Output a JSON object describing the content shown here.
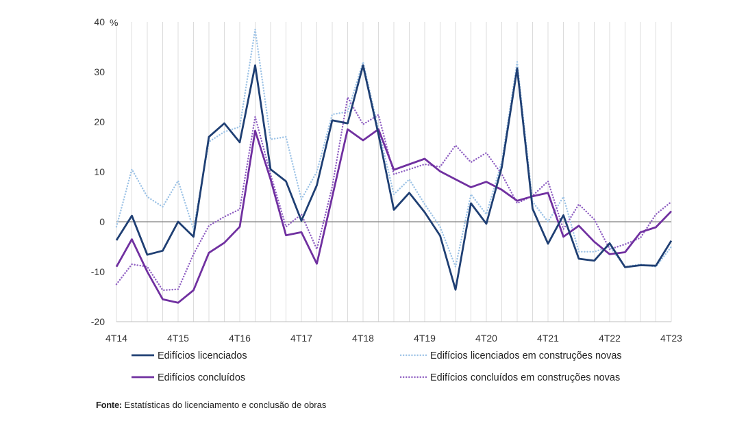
{
  "chart_data": {
    "type": "line",
    "title": "",
    "xlabel": "",
    "ylabel": "",
    "unit_label": "%",
    "ylim": [
      -20,
      40
    ],
    "yticks": [
      -20,
      -10,
      0,
      10,
      20,
      30,
      40
    ],
    "x": [
      "4T14",
      "1T15",
      "2T15",
      "3T15",
      "4T15",
      "1T16",
      "2T16",
      "3T16",
      "4T16",
      "1T17",
      "2T17",
      "3T17",
      "4T17",
      "1T18",
      "2T18",
      "3T18",
      "4T18",
      "1T19",
      "2T19",
      "3T19",
      "4T19",
      "1T20",
      "2T20",
      "3T20",
      "4T20",
      "1T21",
      "2T21",
      "3T21",
      "4T21",
      "1T22",
      "2T22",
      "3T22",
      "4T22",
      "1T23",
      "2T23",
      "3T23",
      "4T23"
    ],
    "x_tick_labels": [
      "4T14",
      "4T15",
      "4T16",
      "4T17",
      "4T18",
      "4T19",
      "4T20",
      "4T21",
      "4T22",
      "4T23"
    ],
    "grid": "vertical",
    "series": [
      {
        "name": "Edifícios licenciados",
        "color": "#1f3f73",
        "style": "solid",
        "values": [
          -3.7,
          1.2,
          -6.6,
          -5.8,
          0.0,
          -3.0,
          17.0,
          19.7,
          15.9,
          31.3,
          10.5,
          8.1,
          0.2,
          7.3,
          20.3,
          19.7,
          31.3,
          17.5,
          2.4,
          5.8,
          1.9,
          -2.8,
          -13.6,
          3.7,
          -0.4,
          10.9,
          30.7,
          2.6,
          -4.4,
          1.3,
          -7.4,
          -7.8,
          -4.3,
          -9.1,
          -8.7,
          -8.8,
          -3.8
        ]
      },
      {
        "name": "Edifícios licenciados em construções novas",
        "color": "#9dc3e6",
        "style": "dotted",
        "values": [
          -1.0,
          10.5,
          5.0,
          3.0,
          8.2,
          -1.5,
          16.0,
          18.0,
          19.0,
          38.5,
          16.5,
          17.0,
          4.5,
          10.0,
          21.5,
          22.0,
          32.0,
          18.5,
          5.5,
          8.5,
          3.5,
          -1.0,
          -9.0,
          5.5,
          1.5,
          12.0,
          32.0,
          4.0,
          0.0,
          5.0,
          -6.0,
          -6.0,
          -5.0,
          -9.0,
          -8.5,
          -9.0,
          -5.0
        ]
      },
      {
        "name": "Edifícios concluídos",
        "color": "#7030a0",
        "style": "solid",
        "values": [
          -9.0,
          -3.5,
          -10.0,
          -15.5,
          -16.2,
          -13.7,
          -6.2,
          -4.2,
          -1.0,
          18.2,
          8.5,
          -2.7,
          -2.1,
          -8.4,
          5.0,
          18.5,
          16.3,
          18.5,
          10.4,
          11.5,
          12.6,
          10.1,
          8.5,
          6.9,
          8.0,
          6.4,
          4.2,
          5.1,
          5.8,
          -3.0,
          -0.8,
          -4.0,
          -6.5,
          -6.1,
          -2.1,
          -1.1,
          2.1
        ]
      },
      {
        "name": "Edifícios concluídos em construções novas",
        "color": "#8f5fc2",
        "style": "dotted",
        "values": [
          -12.5,
          -8.5,
          -9.0,
          -13.7,
          -13.5,
          -6.5,
          -0.8,
          1.0,
          2.5,
          21.0,
          9.5,
          -1.0,
          1.5,
          -5.5,
          7.0,
          24.9,
          19.5,
          21.4,
          9.5,
          10.5,
          11.5,
          11.0,
          15.3,
          11.9,
          13.8,
          9.5,
          3.7,
          5.2,
          8.1,
          -1.5,
          3.5,
          0.5,
          -5.5,
          -4.5,
          -3.2,
          1.5,
          4.0
        ]
      }
    ],
    "legend": [
      {
        "label": "Edifícios licenciados",
        "series": 0,
        "placement": "bottom-left-top"
      },
      {
        "label": "Edifícios licenciados em construções novas",
        "series": 1,
        "placement": "bottom-right-top"
      },
      {
        "label": "Edifícios concluídos",
        "series": 2,
        "placement": "bottom-left-bottom"
      },
      {
        "label": "Edifícios concluídos em construções novas",
        "series": 3,
        "placement": "bottom-right-bottom"
      }
    ]
  },
  "source": {
    "label": "Fonte:",
    "text": " Estatísticas do licenciamento e conclusão de obras"
  }
}
